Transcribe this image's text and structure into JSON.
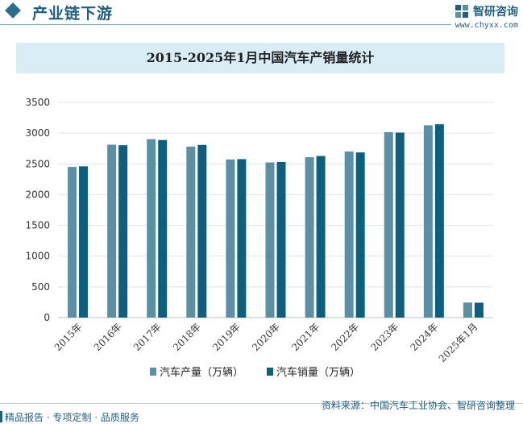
{
  "header": {
    "title": "产业链下游",
    "brand_name": "智研咨询",
    "brand_url": "www.chyxx.com"
  },
  "footer": {
    "left": "精品报告 · 专项定制 · 品质服务",
    "right": "资料来源：中国汽车工业协会、智研咨询整理"
  },
  "colors": {
    "production": "#5b8fa3",
    "sales": "#0e5e7e",
    "accent": "#1f5e80",
    "title_band": "#d9edf6"
  },
  "chart_data": {
    "type": "bar",
    "title": "2015-2025年1月中国汽车产销量统计",
    "categories": [
      "2015年",
      "2016年",
      "2017年",
      "2018年",
      "2019年",
      "2020年",
      "2021年",
      "2022年",
      "2023年",
      "2024年",
      "2025年1月"
    ],
    "series": [
      {
        "name": "汽车产量（万辆）",
        "values": [
          2450,
          2812,
          2902,
          2781,
          2572,
          2523,
          2608,
          2702,
          3016,
          3128,
          245
        ]
      },
      {
        "name": "汽车销量（万辆）",
        "values": [
          2460,
          2803,
          2888,
          2808,
          2577,
          2531,
          2628,
          2686,
          3009,
          3144,
          242
        ]
      }
    ],
    "yticks": [
      "0",
      "500",
      "1000",
      "1500",
      "2000",
      "2500",
      "3000",
      "3500"
    ],
    "ylim": [
      0,
      3500
    ],
    "grid": true,
    "legend": "bottom"
  }
}
